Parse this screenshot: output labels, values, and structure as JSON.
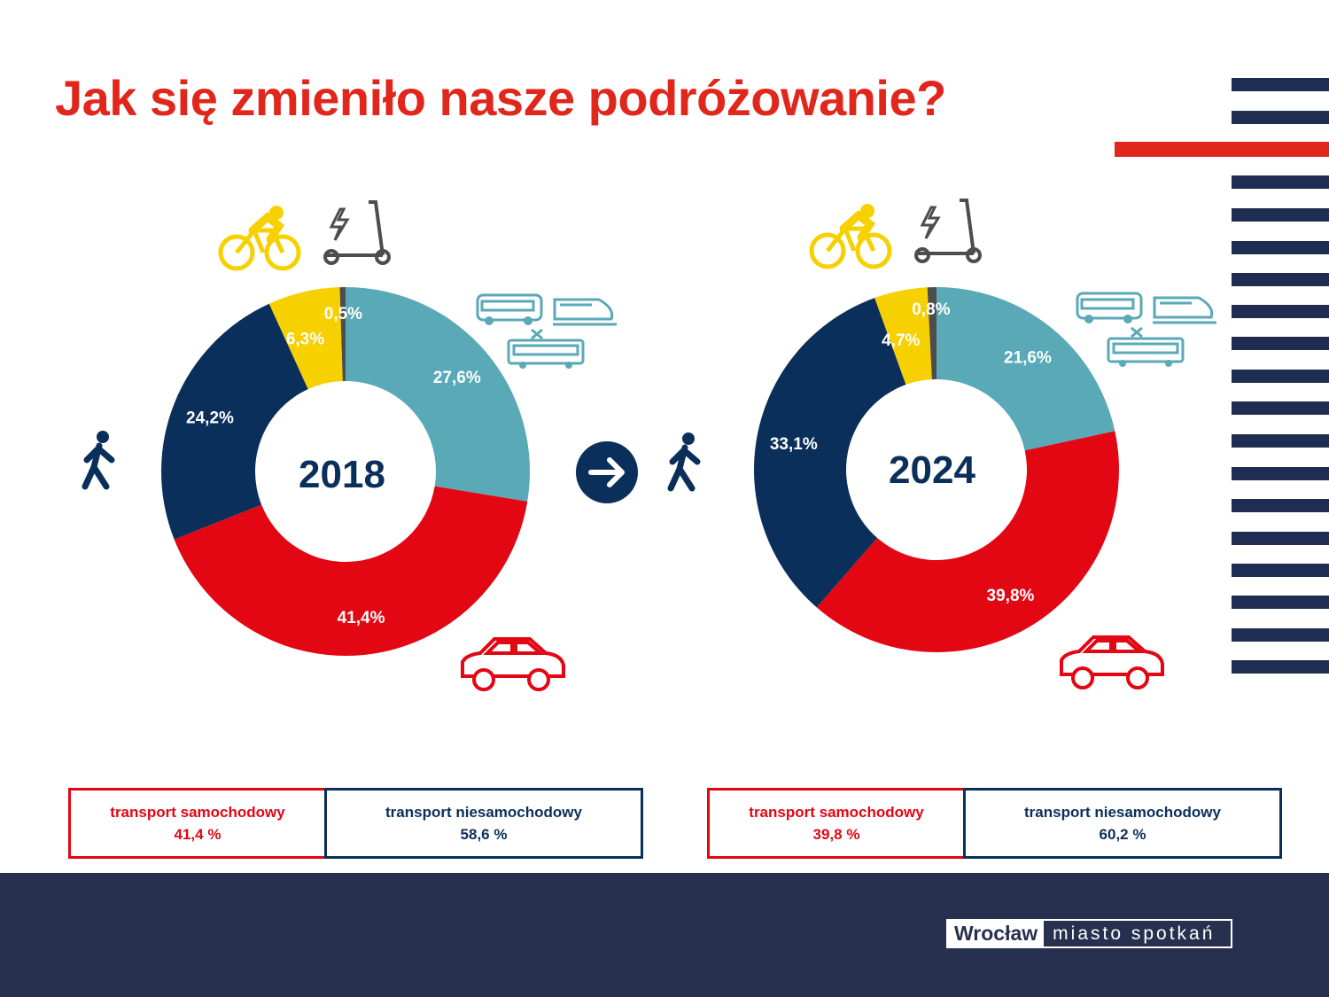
{
  "title": "Jak się zmieniło nasze podróżowanie?",
  "colors": {
    "public_transport": "#5aa9b7",
    "car": "#e30613",
    "walking": "#0b2f5b",
    "bike": "#f7d000",
    "scooter": "#4d4d4f",
    "accent": "#e1261c",
    "navy": "#27304f"
  },
  "chart_data": [
    {
      "type": "pie",
      "title": "2018",
      "categories": [
        "komunikacja zbiorowa",
        "samochód",
        "pieszo",
        "rower",
        "hulajnoga"
      ],
      "values": [
        27.6,
        41.4,
        24.2,
        6.3,
        0.5
      ],
      "labels": [
        "27,6%",
        "41,4%",
        "24,2%",
        "6,3%",
        "0,5%"
      ]
    },
    {
      "type": "pie",
      "title": "2024",
      "categories": [
        "komunikacja zbiorowa",
        "samochód",
        "pieszo",
        "rower",
        "hulajnoga"
      ],
      "values": [
        21.6,
        39.8,
        33.1,
        4.7,
        0.8
      ],
      "labels": [
        "21,6%",
        "39,8%",
        "33,1%",
        "4,7%",
        "0,8%"
      ]
    }
  ],
  "summary": [
    {
      "car_label": "transport samochodowy",
      "car_value": "41,4 %",
      "non_label": "transport niesamochodowy",
      "non_value": "58,6 %"
    },
    {
      "car_label": "transport samochodowy",
      "car_value": "39,8 %",
      "non_label": "transport niesamochodowy",
      "non_value": "60,2 %"
    }
  ],
  "logo": {
    "city": "Wrocław",
    "slogan": "miasto spotkań"
  }
}
